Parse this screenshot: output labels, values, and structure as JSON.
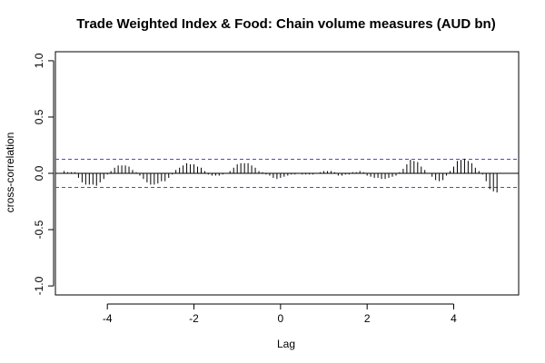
{
  "chart_data": {
    "type": "bar",
    "title": "Trade Weighted Index & Food: Chain volume measures (AUD bn)",
    "xlabel": "Lag",
    "ylabel": "cross-correlation",
    "xlim": [
      -5.2,
      5.5
    ],
    "ylim": [
      -1.08,
      1.08
    ],
    "x_ticks": [
      -4,
      -2,
      0,
      2,
      4
    ],
    "x_tick_labels": [
      "-4",
      "-2",
      "0",
      "2",
      "4"
    ],
    "y_ticks": [
      -1.0,
      -0.5,
      0.0,
      0.5,
      1.0
    ],
    "y_tick_labels": [
      "-1.0",
      "-0.5",
      "0.0",
      "0.5",
      "1.0"
    ],
    "confidence_bounds": [
      0.125,
      -0.125
    ],
    "grid": false,
    "colors": {
      "bars": "#000000",
      "confidence_line": "#4b4bd6",
      "zero_line": "#000000",
      "frame": "#000000"
    },
    "series": [
      {
        "x": [
          -5.0,
          -4.917,
          -4.833,
          -4.75,
          -4.667,
          -4.583,
          -4.5,
          -4.417,
          -4.333,
          -4.25,
          -4.167,
          -4.083,
          -4.0,
          -3.917,
          -3.833,
          -3.75,
          -3.667,
          -3.583,
          -3.5,
          -3.417,
          -3.333,
          -3.25,
          -3.167,
          -3.083,
          -3.0,
          -2.917,
          -2.833,
          -2.75,
          -2.667,
          -2.583,
          -2.5,
          -2.417,
          -2.333,
          -2.25,
          -2.167,
          -2.083,
          -2.0,
          -1.917,
          -1.833,
          -1.75,
          -1.667,
          -1.583,
          -1.5,
          -1.417,
          -1.333,
          -1.25,
          -1.167,
          -1.083,
          -1.0,
          -0.917,
          -0.833,
          -0.75,
          -0.667,
          -0.583,
          -0.5,
          -0.417,
          -0.333,
          -0.25,
          -0.167,
          -0.083,
          0.0,
          0.083,
          0.167,
          0.25,
          0.333,
          0.417,
          0.5,
          0.583,
          0.667,
          0.75,
          0.833,
          0.917,
          1.0,
          1.083,
          1.167,
          1.25,
          1.333,
          1.417,
          1.5,
          1.583,
          1.667,
          1.75,
          1.833,
          1.917,
          2.0,
          2.083,
          2.167,
          2.25,
          2.333,
          2.417,
          2.5,
          2.583,
          2.667,
          2.75,
          2.833,
          2.917,
          3.0,
          3.083,
          3.167,
          3.25,
          3.333,
          3.417,
          3.5,
          3.583,
          3.667,
          3.75,
          3.833,
          3.917,
          4.0,
          4.083,
          4.167,
          4.25,
          4.333,
          4.417,
          4.5,
          4.583,
          4.667,
          4.75,
          4.833,
          4.917,
          5.0
        ],
        "values": [
          0.02,
          0.01,
          0.01,
          0.01,
          -0.04,
          -0.08,
          -0.1,
          -0.1,
          -0.1,
          -0.11,
          -0.08,
          -0.05,
          -0.01,
          0.02,
          0.05,
          0.07,
          0.07,
          0.07,
          0.06,
          0.03,
          0.01,
          -0.02,
          -0.05,
          -0.08,
          -0.1,
          -0.1,
          -0.09,
          -0.07,
          -0.07,
          -0.04,
          -0.01,
          0.03,
          0.05,
          0.07,
          0.09,
          0.08,
          0.08,
          0.06,
          0.05,
          0.02,
          -0.01,
          -0.02,
          -0.02,
          -0.02,
          -0.01,
          0.0,
          0.02,
          0.05,
          0.08,
          0.09,
          0.09,
          0.09,
          0.07,
          0.05,
          0.02,
          0.01,
          -0.01,
          -0.02,
          -0.04,
          -0.05,
          -0.04,
          -0.03,
          -0.02,
          -0.01,
          -0.01,
          0.0,
          -0.01,
          -0.01,
          -0.01,
          -0.01,
          0.0,
          0.01,
          0.02,
          0.02,
          0.02,
          0.01,
          -0.02,
          -0.02,
          -0.01,
          -0.01,
          0.01,
          0.01,
          0.02,
          0.01,
          -0.02,
          -0.03,
          -0.04,
          -0.04,
          -0.05,
          -0.05,
          -0.04,
          -0.03,
          -0.02,
          0.01,
          0.04,
          0.08,
          0.12,
          0.11,
          0.1,
          0.06,
          0.03,
          0.0,
          -0.03,
          -0.06,
          -0.07,
          -0.06,
          -0.02,
          0.02,
          0.06,
          0.11,
          0.12,
          0.13,
          0.11,
          0.09,
          0.05,
          0.02,
          -0.01,
          -0.07,
          -0.14,
          -0.16,
          -0.17
        ]
      }
    ]
  }
}
